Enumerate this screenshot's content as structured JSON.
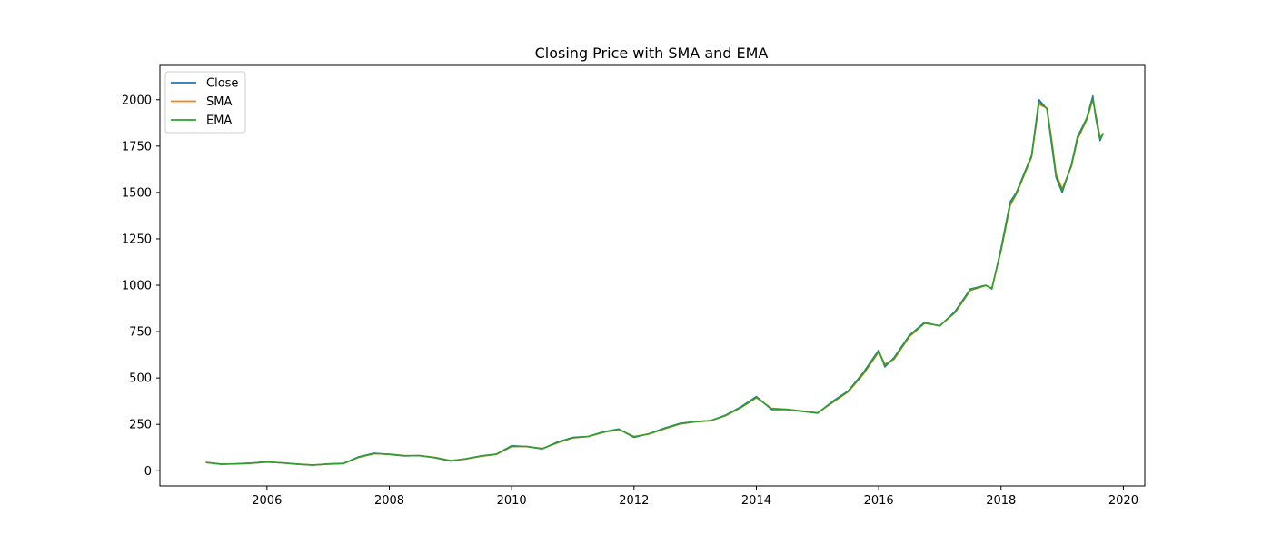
{
  "chart_data": {
    "type": "line",
    "title": "Closing Price with SMA and EMA",
    "xlabel": "",
    "ylabel": "",
    "xlim": [
      2004.25,
      2020.35
    ],
    "ylim": [
      -82,
      2185
    ],
    "x_ticks": [
      2006,
      2008,
      2010,
      2012,
      2014,
      2016,
      2018,
      2020
    ],
    "x_tick_labels": [
      "2006",
      "2008",
      "2010",
      "2012",
      "2014",
      "2016",
      "2018",
      "2020"
    ],
    "y_ticks": [
      0,
      250,
      500,
      750,
      1000,
      1250,
      1500,
      1750,
      2000
    ],
    "y_tick_labels": [
      "0",
      "250",
      "500",
      "750",
      "1000",
      "1250",
      "1500",
      "1750",
      "2000"
    ],
    "grid": false,
    "legend": {
      "placement": "top-left",
      "entries": [
        "Close",
        "SMA",
        "EMA"
      ]
    },
    "colors": {
      "Close": "#1f77b4",
      "SMA": "#ff7f0e",
      "EMA": "#2ca02c"
    },
    "series": [
      {
        "name": "Close",
        "x": [
          2005.0,
          2005.25,
          2005.5,
          2005.75,
          2006.0,
          2006.25,
          2006.5,
          2006.75,
          2007.0,
          2007.25,
          2007.5,
          2007.75,
          2008.0,
          2008.25,
          2008.5,
          2008.75,
          2009.0,
          2009.25,
          2009.5,
          2009.75,
          2010.0,
          2010.25,
          2010.5,
          2010.75,
          2011.0,
          2011.25,
          2011.5,
          2011.75,
          2012.0,
          2012.25,
          2012.5,
          2012.75,
          2013.0,
          2013.25,
          2013.5,
          2013.75,
          2014.0,
          2014.25,
          2014.5,
          2014.75,
          2015.0,
          2015.25,
          2015.5,
          2015.75,
          2016.0,
          2016.1,
          2016.25,
          2016.5,
          2016.75,
          2017.0,
          2017.25,
          2017.5,
          2017.75,
          2017.85,
          2018.0,
          2018.15,
          2018.25,
          2018.5,
          2018.62,
          2018.75,
          2018.83,
          2018.9,
          2019.0,
          2019.15,
          2019.25,
          2019.4,
          2019.5,
          2019.55,
          2019.62,
          2019.67
        ],
        "values": [
          45,
          35,
          38,
          42,
          48,
          42,
          35,
          30,
          37,
          40,
          75,
          95,
          88,
          80,
          82,
          70,
          52,
          65,
          80,
          90,
          135,
          130,
          118,
          155,
          180,
          185,
          210,
          225,
          180,
          200,
          230,
          255,
          265,
          270,
          300,
          345,
          400,
          330,
          330,
          320,
          310,
          375,
          430,
          530,
          650,
          560,
          610,
          730,
          800,
          780,
          860,
          980,
          1000,
          980,
          1200,
          1450,
          1500,
          1700,
          2000,
          1950,
          1750,
          1580,
          1500,
          1650,
          1800,
          1900,
          2020,
          1900,
          1780,
          1820
        ]
      },
      {
        "name": "SMA",
        "x": [
          2005.0,
          2005.25,
          2005.5,
          2005.75,
          2006.0,
          2006.25,
          2006.5,
          2006.75,
          2007.0,
          2007.25,
          2007.5,
          2007.75,
          2008.0,
          2008.25,
          2008.5,
          2008.75,
          2009.0,
          2009.25,
          2009.5,
          2009.75,
          2010.0,
          2010.25,
          2010.5,
          2010.75,
          2011.0,
          2011.25,
          2011.5,
          2011.75,
          2012.0,
          2012.25,
          2012.5,
          2012.75,
          2013.0,
          2013.25,
          2013.5,
          2013.75,
          2014.0,
          2014.25,
          2014.5,
          2014.75,
          2015.0,
          2015.25,
          2015.5,
          2015.75,
          2016.0,
          2016.1,
          2016.25,
          2016.5,
          2016.75,
          2017.0,
          2017.25,
          2017.5,
          2017.75,
          2017.85,
          2018.0,
          2018.15,
          2018.25,
          2018.5,
          2018.62,
          2018.75,
          2018.83,
          2018.9,
          2019.0,
          2019.15,
          2019.25,
          2019.4,
          2019.5,
          2019.55,
          2019.62,
          2019.67
        ],
        "values": [
          45,
          36,
          37,
          41,
          47,
          43,
          36,
          31,
          36,
          39,
          72,
          92,
          89,
          81,
          81,
          72,
          55,
          63,
          78,
          88,
          130,
          131,
          120,
          150,
          177,
          184,
          207,
          222,
          185,
          198,
          226,
          252,
          263,
          269,
          297,
          340,
          393,
          336,
          331,
          322,
          312,
          368,
          425,
          520,
          640,
          575,
          600,
          722,
          795,
          782,
          852,
          972,
          998,
          985,
          1185,
          1430,
          1490,
          1690,
          1975,
          1955,
          1780,
          1600,
          1520,
          1640,
          1785,
          1890,
          2000,
          1920,
          1800,
          1810
        ]
      },
      {
        "name": "EMA",
        "x": [
          2005.0,
          2005.25,
          2005.5,
          2005.75,
          2006.0,
          2006.25,
          2006.5,
          2006.75,
          2007.0,
          2007.25,
          2007.5,
          2007.75,
          2008.0,
          2008.25,
          2008.5,
          2008.75,
          2009.0,
          2009.25,
          2009.5,
          2009.75,
          2010.0,
          2010.25,
          2010.5,
          2010.75,
          2011.0,
          2011.25,
          2011.5,
          2011.75,
          2012.0,
          2012.25,
          2012.5,
          2012.75,
          2013.0,
          2013.25,
          2013.5,
          2013.75,
          2014.0,
          2014.25,
          2014.5,
          2014.75,
          2015.0,
          2015.25,
          2015.5,
          2015.75,
          2016.0,
          2016.1,
          2016.25,
          2016.5,
          2016.75,
          2017.0,
          2017.25,
          2017.5,
          2017.75,
          2017.85,
          2018.0,
          2018.15,
          2018.25,
          2018.5,
          2018.62,
          2018.75,
          2018.83,
          2018.9,
          2019.0,
          2019.15,
          2019.25,
          2019.4,
          2019.5,
          2019.55,
          2019.62,
          2019.67
        ],
        "values": [
          45,
          36,
          37,
          41,
          47,
          43,
          36,
          31,
          36,
          39,
          73,
          93,
          89,
          81,
          81,
          71,
          54,
          64,
          79,
          89,
          132,
          131,
          119,
          152,
          178,
          185,
          208,
          223,
          183,
          199,
          228,
          253,
          264,
          270,
          298,
          342,
          396,
          334,
          331,
          321,
          311,
          371,
          427,
          525,
          645,
          568,
          605,
          726,
          797,
          781,
          856,
          976,
          999,
          983,
          1192,
          1440,
          1495,
          1695,
          1985,
          1952,
          1765,
          1590,
          1510,
          1645,
          1792,
          1895,
          2008,
          1910,
          1790,
          1815
        ]
      }
    ]
  }
}
